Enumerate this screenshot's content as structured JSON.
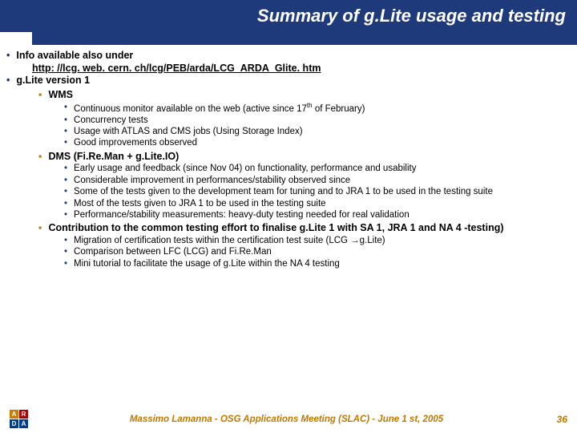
{
  "title": "Summary of g.Lite usage and testing",
  "colors": {
    "brand": "#1f3a7a",
    "accent": "#c07800",
    "text": "#000000",
    "bg": "#ffffff"
  },
  "lvl1": {
    "info_label": "Info available also under",
    "link": "http: //lcg. web. cern. ch/lcg/PEB/arda/LCG_ARDA_Glite. htm",
    "version_label": "g.Lite version 1"
  },
  "wms": {
    "heading": "WMS",
    "items": [
      "Continuous monitor available on the web (active since 17",
      "Concurrency tests",
      "Usage with ATLAS and CMS jobs (Using Storage Index)",
      "Good improvements observed"
    ],
    "item0_suffix": " of February)",
    "item0_sup": "th"
  },
  "dms": {
    "heading": "DMS (Fi.Re.Man + g.Lite.IO)",
    "items": [
      "Early usage and feedback (since Nov 04) on functionality, performance and usability",
      "Considerable improvement in performances/stability observed since",
      "Some of the tests given to the development team for tuning and to JRA 1 to be used in the testing suite",
      "Most of the tests given to JRA 1 to be used in the testing suite",
      "Performance/stability measurements: heavy-duty testing needed for real validation"
    ]
  },
  "contrib": {
    "heading": "Contribution to the common testing effort to finalise g.Lite 1 with SA 1, JRA 1 and NA 4 -testing)",
    "items": [
      "Migration of certification tests within the certification test suite (LCG ",
      "Comparison between LFC (LCG) and Fi.Re.Man",
      "Mini tutorial to facilitate the usage of g.Lite within the NA 4 testing"
    ],
    "item0_arrow": "→",
    "item0_suffix": "g.Lite)"
  },
  "footer": {
    "text": "Massimo Lamanna - OSG Applications Meeting (SLAC) - June 1 st, 2005",
    "page": "36",
    "logo": [
      "A",
      "R",
      "D",
      "A"
    ]
  }
}
